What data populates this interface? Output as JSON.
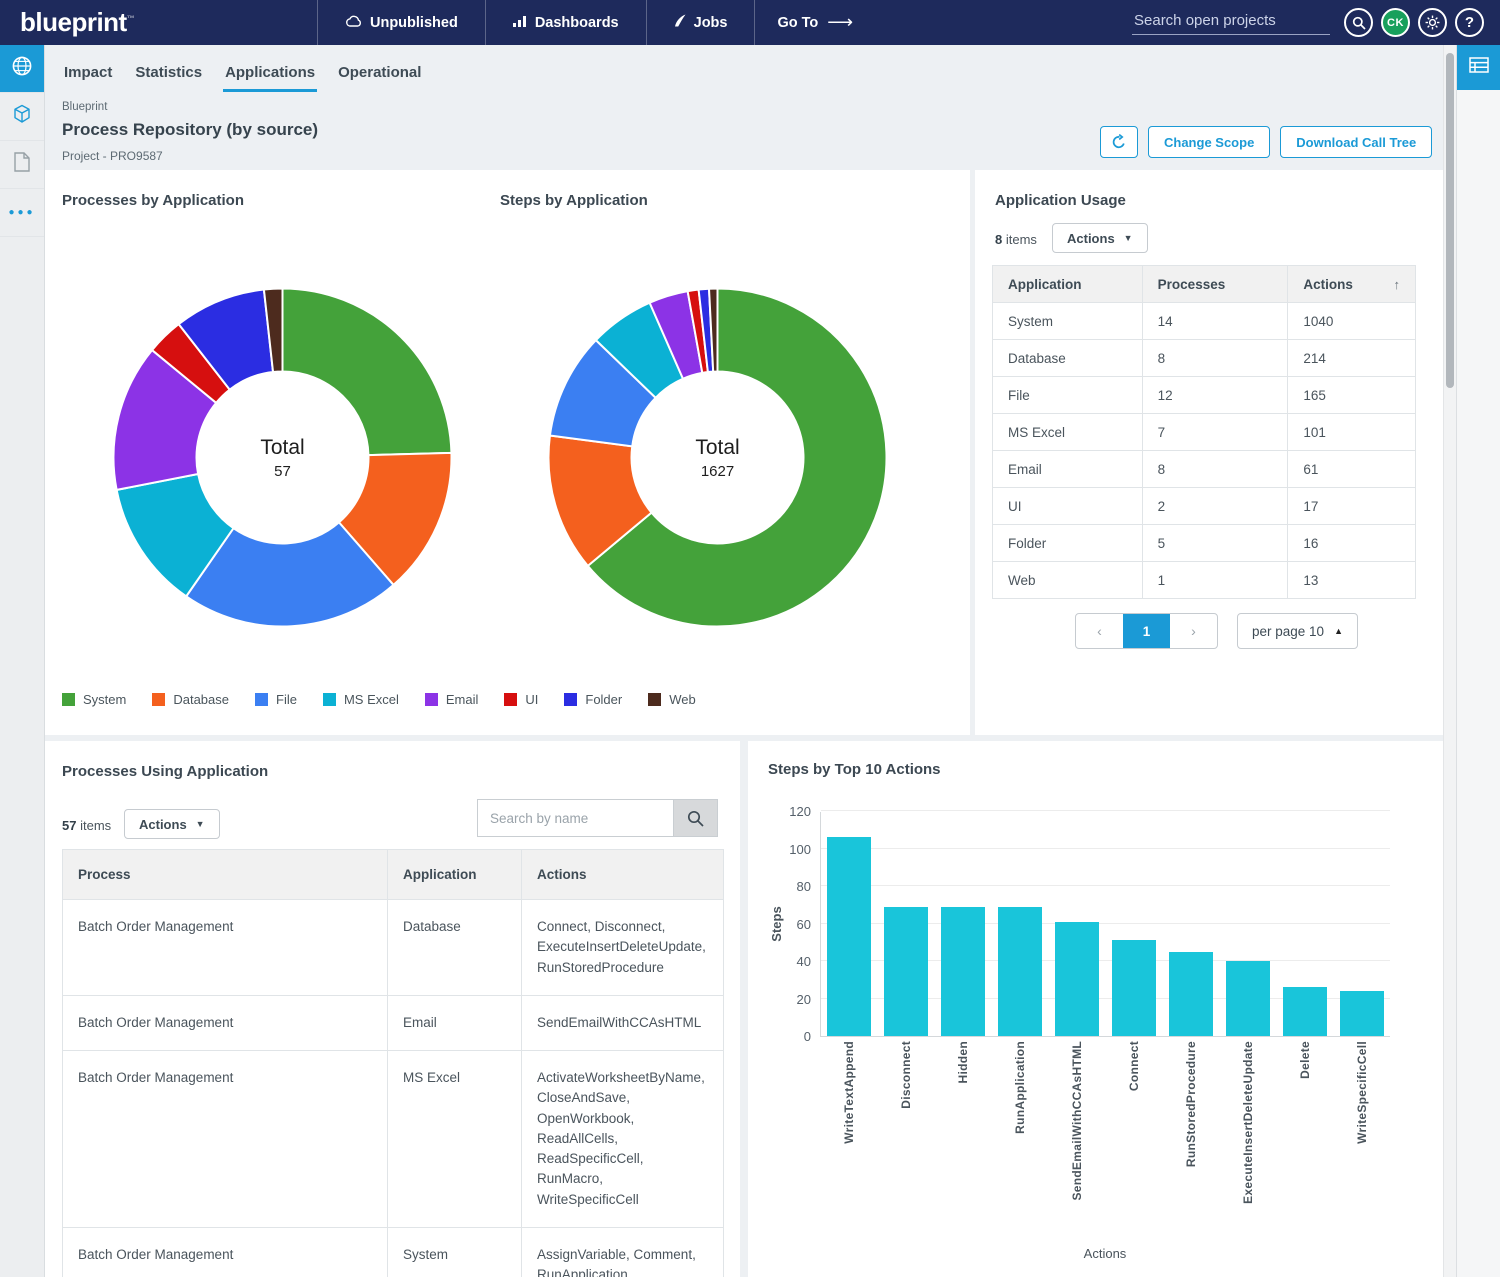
{
  "colors": {
    "accent": "#1b9ad6",
    "nav_bg": "#1e2a5c",
    "bar_color": "#19c5da",
    "donut_colors": {
      "System": "#44a23a",
      "Database": "#f4601e",
      "File": "#3b7ff2",
      "MS Excel": "#0bb1d4",
      "Email": "#8c33e6",
      "UI": "#d60f0f",
      "Folder": "#2b2de2",
      "Web": "#4d2b1e"
    }
  },
  "nav": {
    "logo": "blueprint",
    "items": [
      {
        "label": "Unpublished",
        "icon": "cloud-icon"
      },
      {
        "label": "Dashboards",
        "icon": "bar-chart-icon"
      },
      {
        "label": "Jobs",
        "icon": "quill-icon"
      }
    ],
    "goto_label": "Go To",
    "search_placeholder": "Search open projects",
    "avatar_initials": "CK"
  },
  "tabs": {
    "items": [
      "Impact",
      "Statistics",
      "Applications",
      "Operational"
    ],
    "active": "Applications"
  },
  "header": {
    "breadcrumb": "Blueprint",
    "title": "Process Repository (by source)",
    "subtitle": "Project - PRO9587",
    "change_scope_label": "Change Scope",
    "download_label": "Download Call Tree"
  },
  "legend": [
    "System",
    "Database",
    "File",
    "MS Excel",
    "Email",
    "UI",
    "Folder",
    "Web"
  ],
  "chart_data": [
    {
      "type": "pie",
      "title": "Processes by Application",
      "center_label": "Total",
      "total": 57,
      "categories": [
        "System",
        "Database",
        "File",
        "MS Excel",
        "Email",
        "UI",
        "Folder",
        "Web"
      ],
      "values": [
        14,
        8,
        12,
        7,
        8,
        2,
        5,
        1
      ]
    },
    {
      "type": "pie",
      "title": "Steps by Application",
      "center_label": "Total",
      "total": 1627,
      "categories": [
        "System",
        "Database",
        "File",
        "MS Excel",
        "Email",
        "UI",
        "Folder",
        "Web"
      ],
      "values": [
        1040,
        214,
        165,
        101,
        61,
        17,
        16,
        13
      ]
    },
    {
      "type": "bar",
      "title": "Steps by Top 10 Actions",
      "categories": [
        "WriteTextAppend",
        "Disconnect",
        "Hidden",
        "RunApplication",
        "SendEmailWithCCAsHTML",
        "Connect",
        "RunStoredProcedure",
        "ExecuteInsertDeleteUpdate",
        "Delete",
        "WriteSpecificCell"
      ],
      "values": [
        106,
        69,
        69,
        69,
        61,
        51,
        45,
        40,
        26,
        24
      ],
      "xlabel": "Actions",
      "ylabel": "Steps",
      "ylim": [
        0,
        120
      ],
      "yticks": [
        0,
        20,
        40,
        60,
        80,
        100,
        120
      ],
      "grid": true,
      "legend_position": "none"
    }
  ],
  "application_usage": {
    "title": "Application Usage",
    "items_count": "8",
    "items_label": "items",
    "actions_label": "Actions",
    "columns": [
      "Application",
      "Processes",
      "Actions"
    ],
    "rows": [
      [
        "System",
        "14",
        "1040"
      ],
      [
        "Database",
        "8",
        "214"
      ],
      [
        "File",
        "12",
        "165"
      ],
      [
        "MS Excel",
        "7",
        "101"
      ],
      [
        "Email",
        "8",
        "61"
      ],
      [
        "UI",
        "2",
        "17"
      ],
      [
        "Folder",
        "5",
        "16"
      ],
      [
        "Web",
        "1",
        "13"
      ]
    ],
    "pagination": {
      "page": "1",
      "per_page_label": "per page 10"
    }
  },
  "processes_table": {
    "title": "Processes Using Application",
    "items_count": "57",
    "items_label": "items",
    "actions_label": "Actions",
    "search_placeholder": "Search by name",
    "columns": [
      "Process",
      "Application",
      "Actions"
    ],
    "rows": [
      {
        "process": "Batch Order Management",
        "application": "Database",
        "actions": "Connect, Disconnect, ExecuteInsertDeleteUpdate, RunStoredProcedure"
      },
      {
        "process": "Batch Order Management",
        "application": "Email",
        "actions": "SendEmailWithCCAsHTML"
      },
      {
        "process": "Batch Order Management",
        "application": "MS Excel",
        "actions": "ActivateWorksheetByName, CloseAndSave, OpenWorkbook, ReadAllCells, ReadSpecificCell, RunMacro, WriteSpecificCell"
      },
      {
        "process": "Batch Order Management",
        "application": "System",
        "actions": "AssignVariable, Comment, RunApplication"
      }
    ]
  }
}
